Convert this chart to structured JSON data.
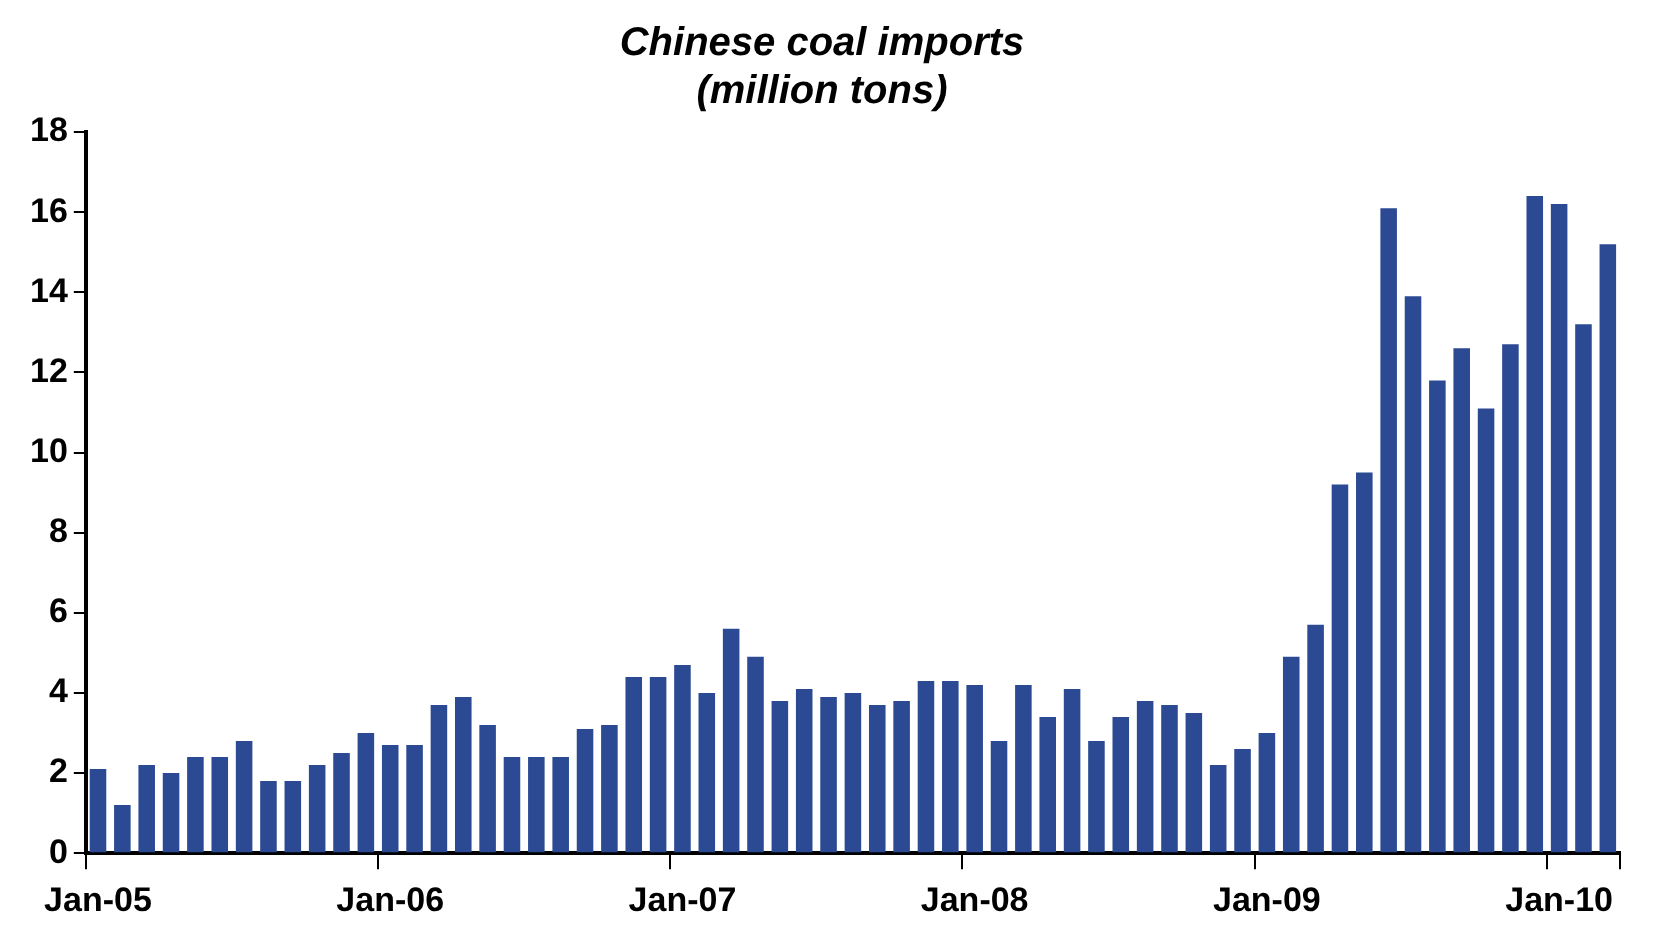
{
  "chart_data": {
    "type": "bar",
    "title": "Chinese coal imports",
    "subtitle": "(million tons)",
    "categories": [
      "Jan-05",
      null,
      null,
      null,
      null,
      null,
      null,
      null,
      null,
      null,
      null,
      null,
      "Jan-06",
      null,
      null,
      null,
      null,
      null,
      null,
      null,
      null,
      null,
      null,
      null,
      "Jan-07",
      null,
      null,
      null,
      null,
      null,
      null,
      null,
      null,
      null,
      null,
      null,
      "Jan-08",
      null,
      null,
      null,
      null,
      null,
      null,
      null,
      null,
      null,
      null,
      null,
      "Jan-09",
      null,
      null,
      null,
      null,
      null,
      null,
      null,
      null,
      null,
      null,
      null,
      "Jan-10",
      null,
      null
    ],
    "values": [
      2.1,
      1.2,
      2.2,
      2.0,
      2.4,
      2.4,
      2.8,
      1.8,
      1.8,
      2.2,
      2.5,
      3.0,
      2.7,
      2.7,
      3.7,
      3.9,
      3.2,
      2.4,
      2.4,
      2.4,
      3.1,
      3.2,
      4.4,
      4.4,
      4.7,
      4.0,
      5.6,
      4.9,
      3.8,
      4.1,
      3.9,
      4.0,
      3.7,
      3.8,
      4.3,
      4.3,
      4.2,
      2.8,
      4.2,
      3.4,
      4.1,
      2.8,
      3.4,
      3.8,
      3.7,
      3.5,
      2.2,
      2.6,
      3.0,
      4.9,
      5.7,
      9.2,
      9.5,
      16.1,
      13.9,
      11.8,
      12.6,
      11.1,
      12.7,
      16.4,
      16.2,
      13.2,
      15.2
    ],
    "color": "#2b4a93",
    "ylim": [
      0,
      18
    ],
    "yticks": [
      0,
      2,
      4,
      6,
      8,
      10,
      12,
      14,
      16,
      18
    ],
    "grid": false,
    "legend": false
  }
}
